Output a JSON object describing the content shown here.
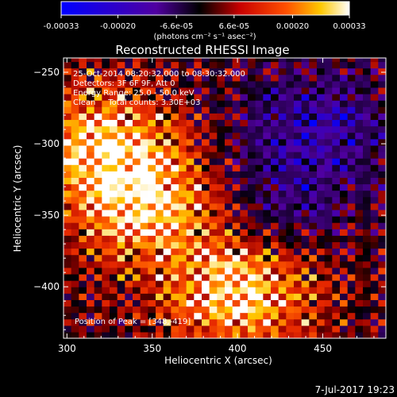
{
  "chart_data": {
    "type": "heatmap",
    "title": "Reconstructed RHESSI Image",
    "xlabel": "Heliocentric X (arcsec)",
    "ylabel": "Heliocentric Y (arcsec)",
    "xlim": [
      298,
      487
    ],
    "ylim": [
      -436,
      -240
    ],
    "x_ticks": [
      "300",
      "350",
      "400",
      "450"
    ],
    "y_ticks": [
      "-250",
      "-300",
      "-350",
      "-400"
    ],
    "colorbar": {
      "ticks": [
        "-0.00033",
        "-0.00020",
        "-6.6e-05",
        "6.6e-05",
        "0.00020",
        "0.00033"
      ],
      "range": [
        -0.00033,
        0.00033
      ],
      "unit_label": "(photons cm⁻² s⁻¹ asec⁻²)"
    },
    "annotations": [
      "25-Oct-2014 08:20:32.000 to 08:30:32.000",
      "Detectors: 3F 6F 9F, Att 0",
      "Energy Range: 25.0 - 50.0 keV",
      "Clean     Total counts: 3.30E+03"
    ],
    "peak_label": "Position of Peak = [348,-419]",
    "peak": [
      348,
      -419
    ],
    "features": [
      {
        "name": "bright-region-bottom",
        "x": 400,
        "y": -405,
        "level": 0.95
      },
      {
        "name": "bright-ridge-diagonal",
        "x": 345,
        "y": -345,
        "level": 0.85
      },
      {
        "name": "bright-patch-left",
        "x": 315,
        "y": -300,
        "level": 0.75
      },
      {
        "name": "dark-region-upper-right",
        "x": 445,
        "y": -290,
        "level": -0.6
      },
      {
        "name": "dark-channel-middle",
        "x": 420,
        "y": -350,
        "level": -0.4
      }
    ]
  },
  "footer": {
    "date": "7-Jul-2017 19:23"
  }
}
